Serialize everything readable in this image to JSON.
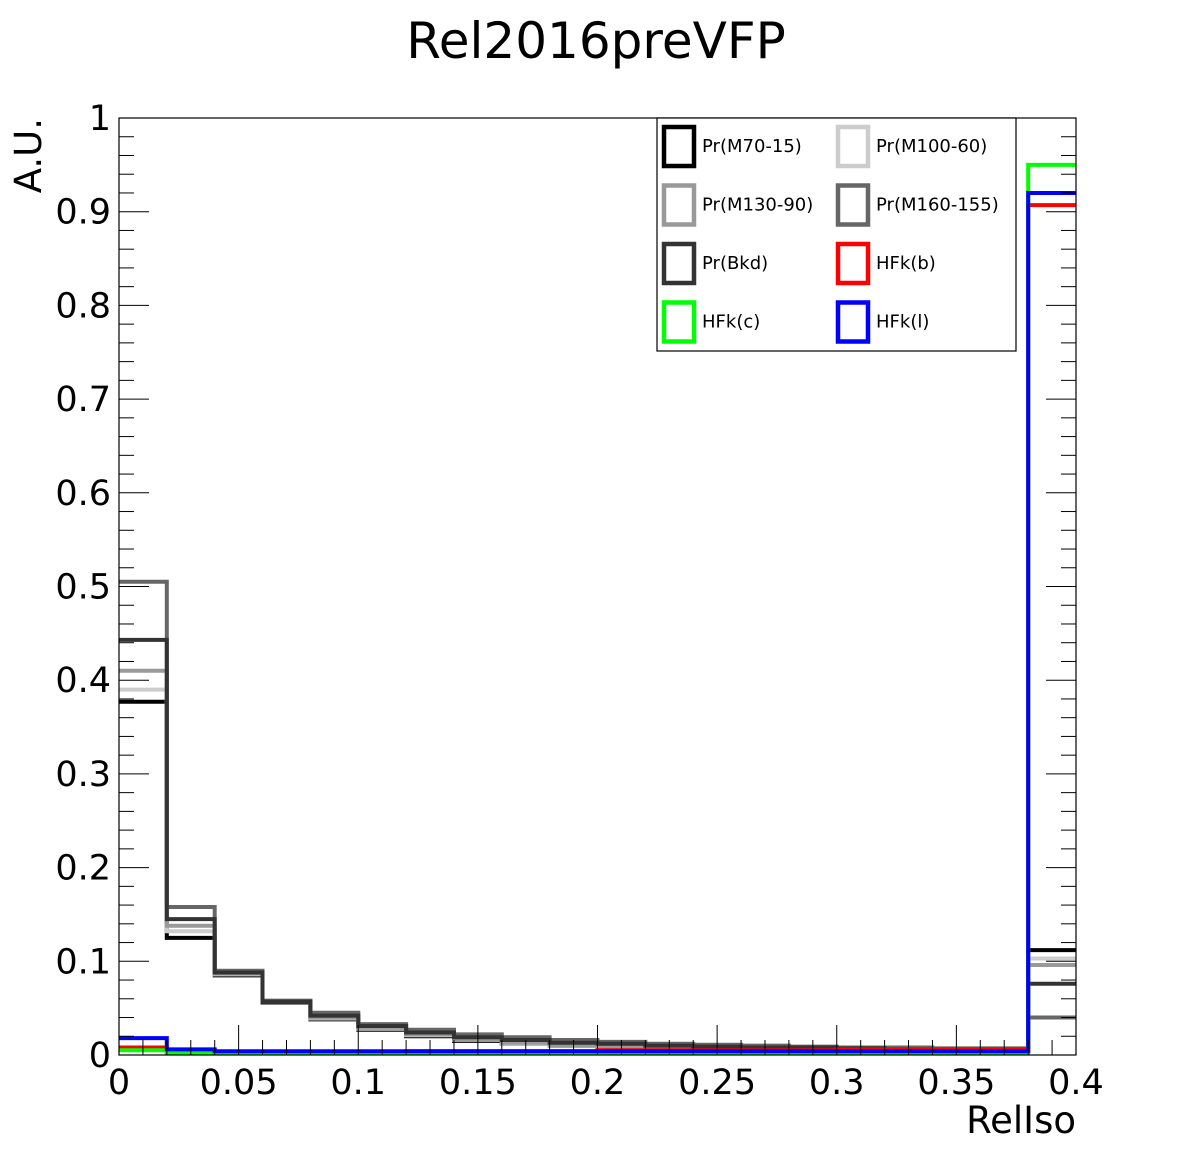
{
  "chart_data": {
    "type": "line",
    "title": "Rel2016preVFP",
    "xlabel": "RelIso",
    "ylabel": "A.U.",
    "xlim": [
      0,
      0.4
    ],
    "ylim": [
      0,
      1
    ],
    "x_ticks": [
      "0",
      "0.05",
      "0.1",
      "0.15",
      "0.2",
      "0.25",
      "0.3",
      "0.35",
      "0.4"
    ],
    "y_ticks": [
      "0",
      "0.1",
      "0.2",
      "0.3",
      "0.4",
      "0.5",
      "0.6",
      "0.7",
      "0.8",
      "0.9",
      "1"
    ],
    "bin_edges": [
      0,
      0.02,
      0.04,
      0.06,
      0.08,
      0.1,
      0.12,
      0.14,
      0.16,
      0.18,
      0.2,
      0.22,
      0.24,
      0.26,
      0.28,
      0.3,
      0.32,
      0.34,
      0.36,
      0.38,
      0.4
    ],
    "legend_position": "top-right",
    "grid": false,
    "series": [
      {
        "name": "Pr(M70-15)",
        "color": "#000000",
        "values": [
          0.377,
          0.125,
          0.085,
          0.056,
          0.038,
          0.027,
          0.02,
          0.015,
          0.012,
          0.01,
          0.009,
          0.008,
          0.007,
          0.006,
          0.005,
          0.005,
          0.004,
          0.004,
          0.004,
          0.112
        ]
      },
      {
        "name": "Pr(M100-60)",
        "color": "#cccccc",
        "values": [
          0.39,
          0.132,
          0.086,
          0.057,
          0.039,
          0.028,
          0.021,
          0.016,
          0.012,
          0.01,
          0.009,
          0.008,
          0.007,
          0.006,
          0.005,
          0.005,
          0.004,
          0.004,
          0.004,
          0.103
        ]
      },
      {
        "name": "Pr(M130-90)",
        "color": "#999999",
        "values": [
          0.41,
          0.138,
          0.087,
          0.058,
          0.04,
          0.029,
          0.022,
          0.016,
          0.013,
          0.01,
          0.009,
          0.008,
          0.007,
          0.006,
          0.005,
          0.005,
          0.004,
          0.004,
          0.004,
          0.096
        ]
      },
      {
        "name": "Pr(M160-155)",
        "color": "#666666",
        "values": [
          0.505,
          0.158,
          0.09,
          0.058,
          0.045,
          0.033,
          0.027,
          0.022,
          0.019,
          0.016,
          0.014,
          0.012,
          0.011,
          0.01,
          0.009,
          0.008,
          0.008,
          0.007,
          0.007,
          0.04
        ]
      },
      {
        "name": "Pr(Bkd)",
        "color": "#333333",
        "values": [
          0.443,
          0.145,
          0.088,
          0.057,
          0.042,
          0.031,
          0.024,
          0.019,
          0.016,
          0.013,
          0.012,
          0.01,
          0.009,
          0.008,
          0.008,
          0.007,
          0.006,
          0.006,
          0.006,
          0.076
        ]
      },
      {
        "name": "HFk(b)",
        "color": "#ff0000",
        "values": [
          0.008,
          0.003,
          0.003,
          0.003,
          0.003,
          0.003,
          0.004,
          0.004,
          0.004,
          0.004,
          0.005,
          0.005,
          0.005,
          0.005,
          0.005,
          0.006,
          0.006,
          0.006,
          0.006,
          0.907
        ]
      },
      {
        "name": "HFk(c)",
        "color": "#00ff00",
        "values": [
          0.005,
          0.002,
          0.002,
          0.002,
          0.002,
          0.002,
          0.002,
          0.002,
          0.002,
          0.002,
          0.002,
          0.002,
          0.002,
          0.002,
          0.002,
          0.002,
          0.002,
          0.002,
          0.002,
          0.95
        ]
      },
      {
        "name": "HFk(l)",
        "color": "#0000ff",
        "values": [
          0.018,
          0.006,
          0.004,
          0.004,
          0.004,
          0.004,
          0.004,
          0.004,
          0.004,
          0.004,
          0.004,
          0.004,
          0.004,
          0.004,
          0.004,
          0.004,
          0.004,
          0.004,
          0.004,
          0.92
        ]
      }
    ]
  }
}
